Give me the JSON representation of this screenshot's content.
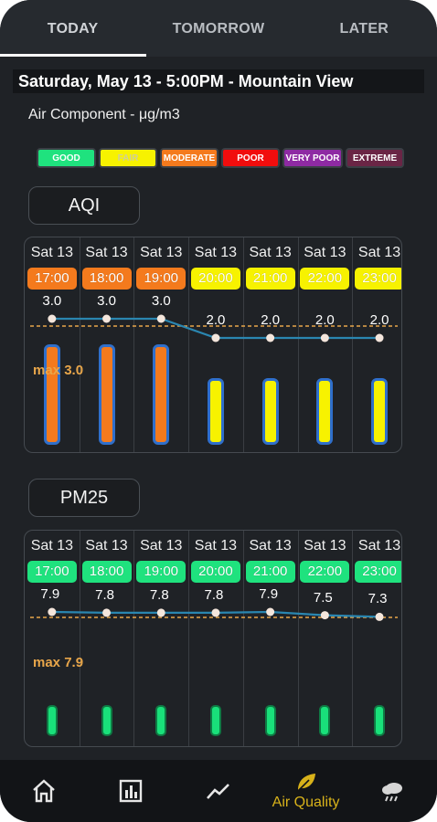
{
  "tabs": [
    {
      "label": "TODAY",
      "active": true
    },
    {
      "label": "TOMORROW",
      "active": false
    },
    {
      "label": "LATER",
      "active": false
    }
  ],
  "header": {
    "title": "Saturday, May 13 - 5:00PM - Mountain View",
    "subtitle": "Air Component - μg/m3"
  },
  "legend": [
    {
      "label": "GOOD",
      "color": "#1fe27e"
    },
    {
      "label": "FAIR",
      "color": "#f7f200"
    },
    {
      "label": "MODERATE",
      "color": "#f47a1d"
    },
    {
      "label": "POOR",
      "color": "#f10d0d"
    },
    {
      "label": "VERY POOR",
      "color": "#8e2aa3"
    },
    {
      "label": "EXTREME",
      "color": "#6a2545"
    }
  ],
  "aqi": {
    "title": "AQI",
    "days": [
      "Sat 13",
      "Sat 13",
      "Sat 13",
      "Sat 13",
      "Sat 13",
      "Sat 13",
      "Sat 13"
    ],
    "times": [
      "17:00",
      "18:00",
      "19:00",
      "20:00",
      "21:00",
      "22:00",
      "23:00"
    ],
    "values": [
      "3.0",
      "3.0",
      "3.0",
      "2.0",
      "2.0",
      "2.0",
      "2.0"
    ],
    "chip_colors": [
      "#f47a1d",
      "#f47a1d",
      "#f47a1d",
      "#f7f200",
      "#f7f200",
      "#f7f200",
      "#f7f200"
    ],
    "bar_colors": [
      "#f47a1d",
      "#f47a1d",
      "#f47a1d",
      "#f7f200",
      "#f7f200",
      "#f7f200",
      "#f7f200"
    ],
    "max_label": "max 3.0"
  },
  "pm25": {
    "title": "PM25",
    "days": [
      "Sat 13",
      "Sat 13",
      "Sat 13",
      "Sat 13",
      "Sat 13",
      "Sat 13",
      "Sat 13"
    ],
    "times": [
      "17:00",
      "18:00",
      "19:00",
      "20:00",
      "21:00",
      "22:00",
      "23:00"
    ],
    "values": [
      "7.9",
      "7.8",
      "7.8",
      "7.8",
      "7.9",
      "7.5",
      "7.3"
    ],
    "chip_color": "#1fe27e",
    "bar_color": "#19e07a",
    "max_label": "max 7.9"
  },
  "bottom_nav": [
    {
      "icon": "home-icon",
      "label": ""
    },
    {
      "icon": "bar-chart-icon",
      "label": ""
    },
    {
      "icon": "trend-line-icon",
      "label": ""
    },
    {
      "icon": "leaf-icon",
      "label": "Air Quality"
    },
    {
      "icon": "cloud-rain-icon",
      "label": ""
    }
  ]
}
